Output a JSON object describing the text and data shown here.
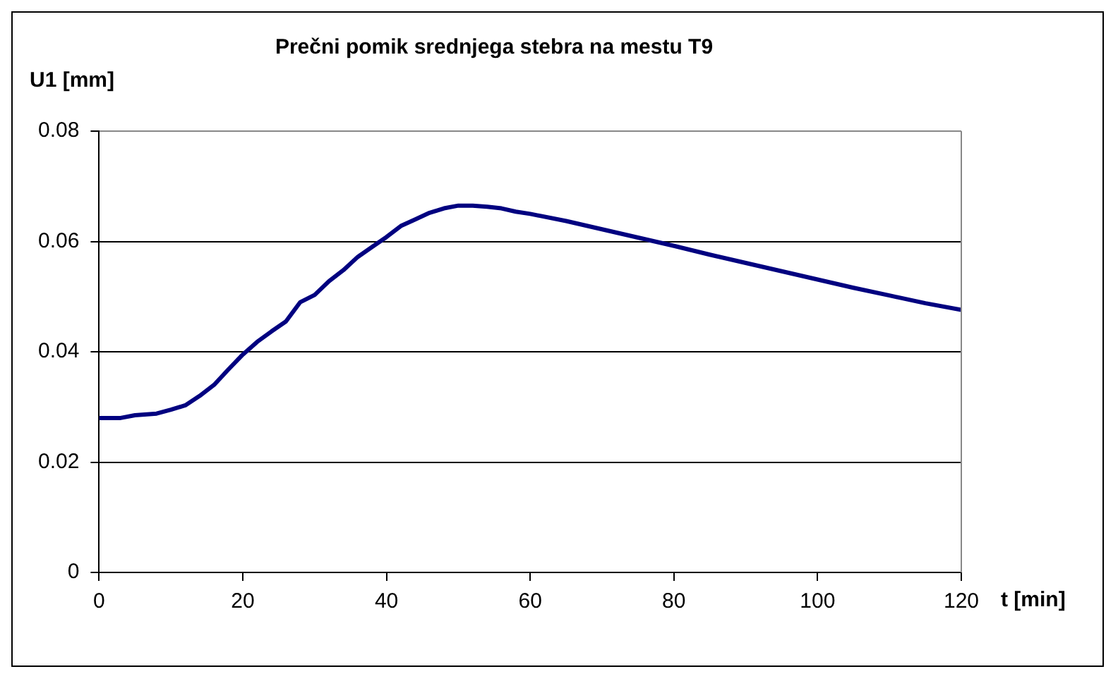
{
  "chart_data": {
    "type": "line",
    "title": "Prečni pomik srednjega stebra na mestu T9",
    "xlabel": "t [min]",
    "ylabel": "U1 [mm]",
    "x": [
      0,
      3,
      5,
      8,
      10,
      12,
      14,
      16,
      18,
      20,
      22,
      24,
      26,
      28,
      30,
      32,
      34,
      36,
      38,
      40,
      42,
      44,
      46,
      48,
      50,
      52,
      54,
      56,
      58,
      60,
      65,
      70,
      75,
      80,
      85,
      90,
      95,
      100,
      105,
      110,
      115,
      120
    ],
    "series": [
      {
        "color": "#000080",
        "values": [
          0.028,
          0.028,
          0.0285,
          0.0288,
          0.0295,
          0.0303,
          0.032,
          0.034,
          0.0368,
          0.0395,
          0.0418,
          0.0437,
          0.0455,
          0.049,
          0.0503,
          0.0528,
          0.0548,
          0.0572,
          0.059,
          0.0608,
          0.0628,
          0.064,
          0.0652,
          0.066,
          0.0665,
          0.0665,
          0.0663,
          0.066,
          0.0654,
          0.065,
          0.0637,
          0.0622,
          0.0607,
          0.0592,
          0.0576,
          0.0561,
          0.0546,
          0.0531,
          0.0516,
          0.0502,
          0.0488,
          0.0476
        ]
      }
    ],
    "xlim": [
      0,
      120
    ],
    "xticks": [
      0,
      20,
      40,
      60,
      80,
      100,
      120
    ],
    "ylim": [
      0,
      0.08
    ],
    "yticks": [
      0,
      0.02,
      0.04,
      0.06,
      0.08
    ],
    "grid": "y",
    "legend": false,
    "marker": "none",
    "line_style": "solid"
  }
}
